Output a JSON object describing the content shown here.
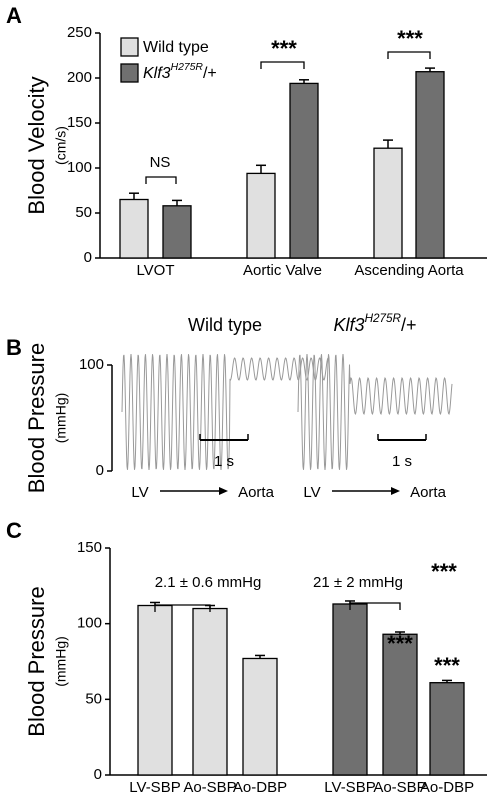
{
  "chart_data": [
    {
      "type": "bar",
      "panel": "A",
      "ylabel": "Blood Velocity",
      "yunit": "(cm/s)",
      "categories": [
        "LVOT",
        "Aortic Valve",
        "Ascending Aorta"
      ],
      "series": [
        {
          "name": "Wild type",
          "color": "#e0e0e0",
          "values": [
            65,
            94,
            122
          ],
          "errors": [
            7,
            9,
            9
          ]
        },
        {
          "name": "Klf3",
          "name_sup": "H275R",
          "name_end": "/+",
          "color": "#707070",
          "values": [
            58,
            194,
            207
          ],
          "errors": [
            6,
            4,
            4
          ]
        }
      ],
      "ylim": [
        0,
        250
      ],
      "yticks": [
        0,
        50,
        100,
        150,
        200,
        250
      ],
      "annotations": [
        "NS",
        "***",
        "***"
      ]
    },
    {
      "type": "trace",
      "panel": "B",
      "ylabel": "Blood Pressure",
      "yunit": "(mmHg)",
      "titles": [
        {
          "name": "Wild type"
        },
        {
          "name": "Klf3",
          "name_sup": "H275R",
          "name_end": "/+"
        }
      ],
      "ylim": [
        0,
        100
      ],
      "yticks": [
        0,
        100
      ],
      "color": "#999999",
      "scalebar": "1 s",
      "from": "LV",
      "to": "Aorta"
    },
    {
      "type": "bar",
      "panel": "C",
      "ylabel": "Blood Pressure",
      "yunit": "(mmHg)",
      "categories": [
        "LV-SBP",
        "Ao-SBP",
        "Ao-DBP",
        "LV-SBP",
        "Ao-SBP",
        "Ao-DBP"
      ],
      "values": [
        112,
        110,
        77,
        113,
        93,
        61
      ],
      "errors": [
        2,
        2,
        2,
        2,
        1.5,
        1.5
      ],
      "colors": [
        "#e0e0e0",
        "#e0e0e0",
        "#e0e0e0",
        "#707070",
        "#707070",
        "#707070"
      ],
      "ylim": [
        0,
        150
      ],
      "yticks": [
        0,
        50,
        100,
        150
      ],
      "annotations": [
        "2.1 ± 0.6 mmHg",
        "21 ± 2 mmHg",
        "***",
        "***",
        "***"
      ]
    }
  ]
}
